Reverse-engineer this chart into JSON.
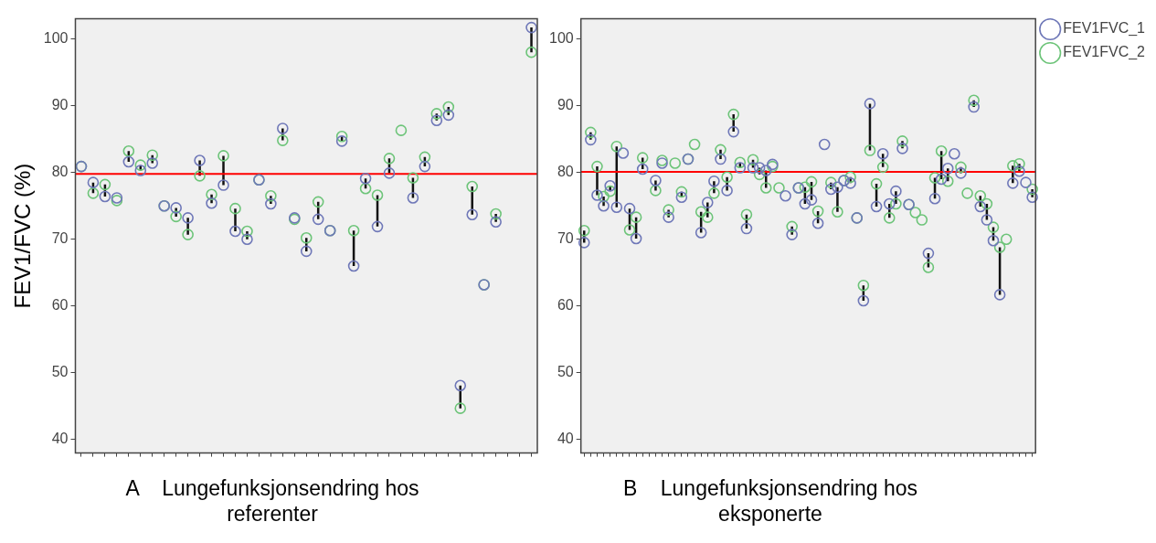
{
  "chart_data": [
    {
      "type": "scatter",
      "xlabel": "A    Lungefunksjonsendring hos referenter",
      "ylabel": "FEV1/FVC (%)",
      "marker": "circle",
      "categories": [
        null,
        null,
        null,
        null,
        null,
        null,
        null,
        null,
        null,
        null,
        null,
        null,
        null,
        null,
        null,
        null,
        null,
        null,
        null,
        null,
        null,
        null,
        null,
        null,
        null,
        null,
        null,
        null,
        null,
        null,
        null,
        null,
        null,
        null,
        null,
        null,
        null,
        null,
        null
      ],
      "ylim": [
        38,
        103
      ],
      "yticks": [
        40,
        50,
        60,
        70,
        80,
        90,
        100
      ],
      "ref_lines": [
        {
          "axis": "y",
          "value": 79.8,
          "color": "#ff0000"
        }
      ],
      "series": [
        {
          "color": "#6f78b8",
          "values": [
            80.9,
            78.5,
            76.4,
            76.2,
            81.6,
            80.3,
            81.4,
            75.0,
            74.7,
            73.2,
            81.8,
            75.4,
            78.1,
            71.2,
            70.0,
            78.9,
            75.3,
            86.6,
            73.2,
            68.2,
            73.0,
            71.3,
            84.7,
            66.0,
            79.1,
            71.9,
            79.9,
            null,
            76.2,
            80.9,
            87.8,
            88.6,
            48.1,
            73.7,
            63.2,
            72.6,
            null,
            null,
            101.7
          ]
        },
        {
          "color": "#6dc479",
          "values": [
            80.9,
            76.9,
            78.2,
            75.8,
            83.2,
            81.1,
            82.6,
            75.0,
            73.4,
            70.7,
            79.5,
            76.7,
            82.5,
            74.6,
            71.2,
            78.9,
            76.5,
            84.8,
            73.0,
            70.2,
            75.6,
            71.3,
            85.4,
            71.3,
            77.6,
            76.6,
            82.1,
            86.3,
            79.2,
            82.3,
            88.8,
            89.8,
            44.7,
            77.9,
            63.2,
            73.8,
            null,
            null,
            98.0
          ]
        }
      ]
    },
    {
      "type": "scatter",
      "xlabel": "B    Lungefunksjonsendring hos eksponerte",
      "marker": "circle",
      "legend": "top right",
      "categories": [
        null,
        null,
        null,
        null,
        null,
        null,
        null,
        null,
        null,
        null,
        null,
        null,
        null,
        null,
        null,
        null,
        null,
        null,
        null,
        null,
        null,
        null,
        null,
        null,
        null,
        null,
        null,
        null,
        null,
        null,
        null,
        null,
        null,
        null,
        null,
        null,
        null,
        null,
        null,
        null,
        null,
        null,
        null,
        null,
        null,
        null,
        null,
        null,
        null,
        null,
        null,
        null,
        null,
        null,
        null,
        null,
        null,
        null,
        null,
        null,
        null,
        null,
        null,
        null,
        null,
        null,
        null,
        null,
        null,
        null
      ],
      "ylim": [
        38,
        103
      ],
      "yticks": [
        40,
        50,
        60,
        70,
        80,
        90,
        100
      ],
      "ref_lines": [
        {
          "axis": "y",
          "value": 80.1,
          "color": "#ff0000"
        }
      ],
      "series": [
        {
          "name": "FEV1FVC_1",
          "color": "#6f78b8",
          "values": [
            69.5,
            84.9,
            76.6,
            75.0,
            78.0,
            74.8,
            82.9,
            74.6,
            70.1,
            80.5,
            null,
            78.8,
            81.4,
            73.3,
            null,
            76.3,
            82.0,
            null,
            71.0,
            75.5,
            78.7,
            82.0,
            77.3,
            86.1,
            80.7,
            71.6,
            80.7,
            80.7,
            80.3,
            81.2,
            null,
            76.5,
            70.7,
            77.7,
            75.3,
            75.9,
            72.4,
            84.2,
            77.5,
            77.8,
            78.8,
            78.4,
            73.2,
            60.8,
            90.3,
            74.9,
            82.8,
            75.3,
            77.2,
            83.6,
            75.2,
            null,
            null,
            67.9,
            76.1,
            79.0,
            80.6,
            82.8,
            79.9,
            null,
            89.8,
            74.9,
            72.9,
            69.8,
            61.7,
            null,
            78.4,
            80.2,
            78.5,
            76.3
          ]
        },
        {
          "name": "FEV1FVC_2",
          "color": "#6dc479",
          "values": [
            71.3,
            86.0,
            80.9,
            76.4,
            77.2,
            83.9,
            null,
            71.4,
            73.3,
            82.2,
            null,
            77.3,
            81.8,
            74.4,
            81.4,
            77.1,
            82.0,
            84.2,
            74.1,
            73.3,
            76.9,
            83.4,
            79.3,
            88.7,
            81.5,
            73.7,
            81.9,
            79.7,
            77.7,
            80.9,
            77.7,
            null,
            71.9,
            77.7,
            77.8,
            78.6,
            74.2,
            null,
            78.5,
            74.1,
            78.8,
            79.3,
            73.2,
            63.1,
            83.3,
            78.3,
            80.8,
            73.2,
            75.3,
            84.7,
            75.2,
            74.0,
            72.9,
            65.8,
            79.2,
            83.2,
            78.7,
            null,
            80.8,
            76.9,
            90.8,
            76.5,
            75.3,
            71.8,
            68.8,
            70.0,
            81.0,
            81.3,
            null,
            77.5
          ]
        }
      ]
    }
  ]
}
